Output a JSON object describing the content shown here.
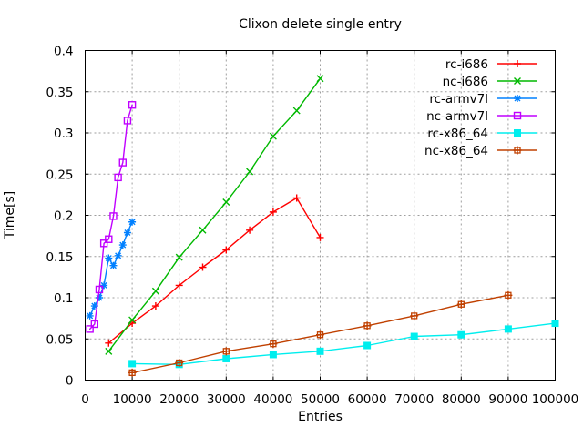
{
  "chart": {
    "title": "Clixon delete single entry",
    "xlabel": "Entries",
    "ylabel": "Time[s]"
  },
  "chart_data": {
    "type": "line",
    "title": "Clixon delete single entry",
    "xlabel": "Entries",
    "ylabel": "Time[s]",
    "xlim": [
      0,
      100000
    ],
    "ylim": [
      0,
      0.4
    ],
    "x_ticks": [
      0,
      10000,
      20000,
      30000,
      40000,
      50000,
      60000,
      70000,
      80000,
      90000,
      100000
    ],
    "x_tick_labels": [
      "0",
      "10000",
      "20000",
      "30000",
      "40000",
      "50000",
      "60000",
      "70000",
      "80000",
      "90000",
      "100000"
    ],
    "y_ticks": [
      0,
      0.05,
      0.1,
      0.15,
      0.2,
      0.25,
      0.3,
      0.35,
      0.4
    ],
    "y_tick_labels": [
      "0",
      "0.05",
      "0.1",
      "0.15",
      "0.2",
      "0.25",
      "0.3",
      "0.35",
      "0.4"
    ],
    "grid": true,
    "grid_color": "#9e9e9e",
    "axis_color": "#000000",
    "legend_position": "top-right-inside",
    "series": [
      {
        "name": "rc-i686",
        "color": "#ff0000",
        "marker": "plus",
        "x": [
          5000,
          10000,
          15000,
          20000,
          25000,
          30000,
          35000,
          40000,
          45000,
          50000
        ],
        "y": [
          0.045,
          0.069,
          0.09,
          0.115,
          0.137,
          0.158,
          0.182,
          0.204,
          0.221,
          0.173
        ]
      },
      {
        "name": "nc-i686",
        "color": "#00b800",
        "marker": "cross",
        "x": [
          5000,
          10000,
          15000,
          20000,
          25000,
          30000,
          35000,
          40000,
          45000,
          50000
        ],
        "y": [
          0.035,
          0.073,
          0.108,
          0.149,
          0.182,
          0.216,
          0.253,
          0.296,
          0.327,
          0.366
        ]
      },
      {
        "name": "rc-armv7l",
        "color": "#0080ff",
        "marker": "asterisk",
        "x": [
          1000,
          2000,
          3000,
          4000,
          5000,
          6000,
          7000,
          8000,
          9000,
          10000
        ],
        "y": [
          0.078,
          0.09,
          0.1,
          0.115,
          0.148,
          0.139,
          0.151,
          0.164,
          0.179,
          0.192
        ]
      },
      {
        "name": "nc-armv7l",
        "color": "#c000ff",
        "marker": "square-open",
        "x": [
          1000,
          2000,
          3000,
          4000,
          5000,
          6000,
          7000,
          8000,
          9000,
          10000
        ],
        "y": [
          0.062,
          0.068,
          0.11,
          0.166,
          0.171,
          0.199,
          0.246,
          0.264,
          0.315,
          0.334
        ]
      },
      {
        "name": "rc-x86_64",
        "color": "#00eeee",
        "marker": "square-filled",
        "x": [
          10000,
          20000,
          30000,
          40000,
          50000,
          60000,
          70000,
          80000,
          90000,
          100000
        ],
        "y": [
          0.02,
          0.019,
          0.026,
          0.031,
          0.035,
          0.042,
          0.053,
          0.055,
          0.062,
          0.069
        ]
      },
      {
        "name": "nc-x86_64",
        "color": "#c04000",
        "marker": "square-plus",
        "x": [
          10000,
          20000,
          30000,
          40000,
          50000,
          60000,
          70000,
          80000,
          90000
        ],
        "y": [
          0.009,
          0.021,
          0.035,
          0.044,
          0.055,
          0.066,
          0.078,
          0.092,
          0.103
        ]
      }
    ]
  }
}
